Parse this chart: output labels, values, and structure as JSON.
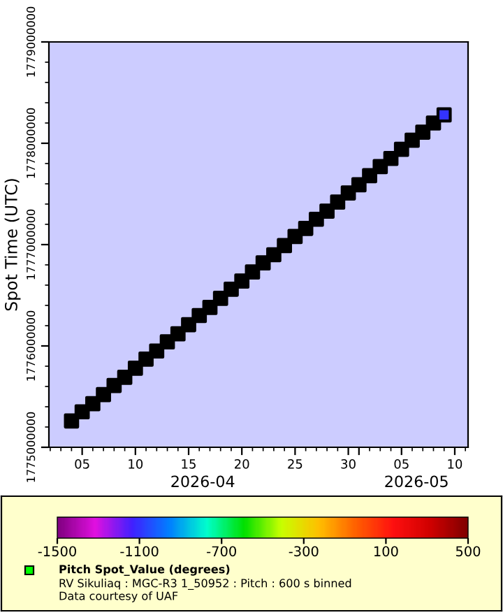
{
  "chart_data": {
    "type": "scatter",
    "ylabel": "Spot Time (UTC)",
    "clabel": "Pitch Spot_Value (degrees)",
    "subtitle": "RV Sikuliaq : MGC-R3 1_50952 : Pitch : 600 s binned",
    "annotations": [
      "2026-04",
      "2026-05",
      "Data courtesy of UAF"
    ],
    "x": [
      "2026-04-04",
      "2026-04-05",
      "2026-04-06",
      "2026-04-07",
      "2026-04-08",
      "2026-04-09",
      "2026-04-10",
      "2026-04-11",
      "2026-04-12",
      "2026-04-13",
      "2026-04-14",
      "2026-04-15",
      "2026-04-16",
      "2026-04-17",
      "2026-04-18",
      "2026-04-19",
      "2026-04-20",
      "2026-04-21",
      "2026-04-22",
      "2026-04-23",
      "2026-04-24",
      "2026-04-25",
      "2026-04-26",
      "2026-04-27",
      "2026-04-28",
      "2026-04-29",
      "2026-04-30",
      "2026-05-01",
      "2026-05-02",
      "2026-05-03",
      "2026-05-04",
      "2026-05-05",
      "2026-05-06",
      "2026-05-07",
      "2026-05-08",
      "2026-05-09"
    ],
    "series": [
      {
        "color": "#000000",
        "colors": [
          "#000000",
          "#000000",
          "#000000",
          "#000000",
          "#000000",
          "#000000",
          "#000000",
          "#000000",
          "#000000",
          "#000000",
          "#000000",
          "#000000",
          "#000000",
          "#000000",
          "#000000",
          "#000000",
          "#000000",
          "#000000",
          "#000000",
          "#000000",
          "#000000",
          "#000000",
          "#000000",
          "#000000",
          "#000000",
          "#000000",
          "#000000",
          "#000000",
          "#000000",
          "#000000",
          "#000000",
          "#000000",
          "#000000",
          "#000000",
          "#000000",
          "#3333ff"
        ],
        "values": [
          1775260000,
          1775350000,
          1775430000,
          1775520000,
          1775610000,
          1775690000,
          1775780000,
          1775870000,
          1775950000,
          1776040000,
          1776120000,
          1776210000,
          1776300000,
          1776380000,
          1776470000,
          1776560000,
          1776640000,
          1776730000,
          1776820000,
          1776900000,
          1776990000,
          1777080000,
          1777160000,
          1777250000,
          1777330000,
          1777420000,
          1777510000,
          1777590000,
          1777680000,
          1777770000,
          1777850000,
          1777940000,
          1778030000,
          1778110000,
          1778200000,
          1778280000
        ]
      }
    ],
    "marker": "square",
    "grid": false,
    "legend": false,
    "xlim": [
      "2026-04-01T21:00",
      "2026-05-11T06:00"
    ],
    "xticks": [
      {
        "value": "2026-04-05",
        "label": "05"
      },
      {
        "value": "2026-04-10",
        "label": "10"
      },
      {
        "value": "2026-04-15",
        "label": "15"
      },
      {
        "value": "2026-04-20",
        "label": "20"
      },
      {
        "value": "2026-04-25",
        "label": "25"
      },
      {
        "value": "2026-04-30",
        "label": "30"
      },
      {
        "value": "2026-05-01",
        "label": null
      },
      {
        "value": "2026-05-05",
        "label": "05"
      },
      {
        "value": "2026-05-10",
        "label": "10"
      }
    ],
    "ylim": [
      1775000000,
      1779000000
    ],
    "yticks": [
      1775000000,
      1776000000,
      1777000000,
      1778000000,
      1779000000
    ],
    "clim": [
      -1500,
      500
    ],
    "cticks": [
      -1500,
      -1100,
      -700,
      -300,
      100,
      500
    ]
  }
}
